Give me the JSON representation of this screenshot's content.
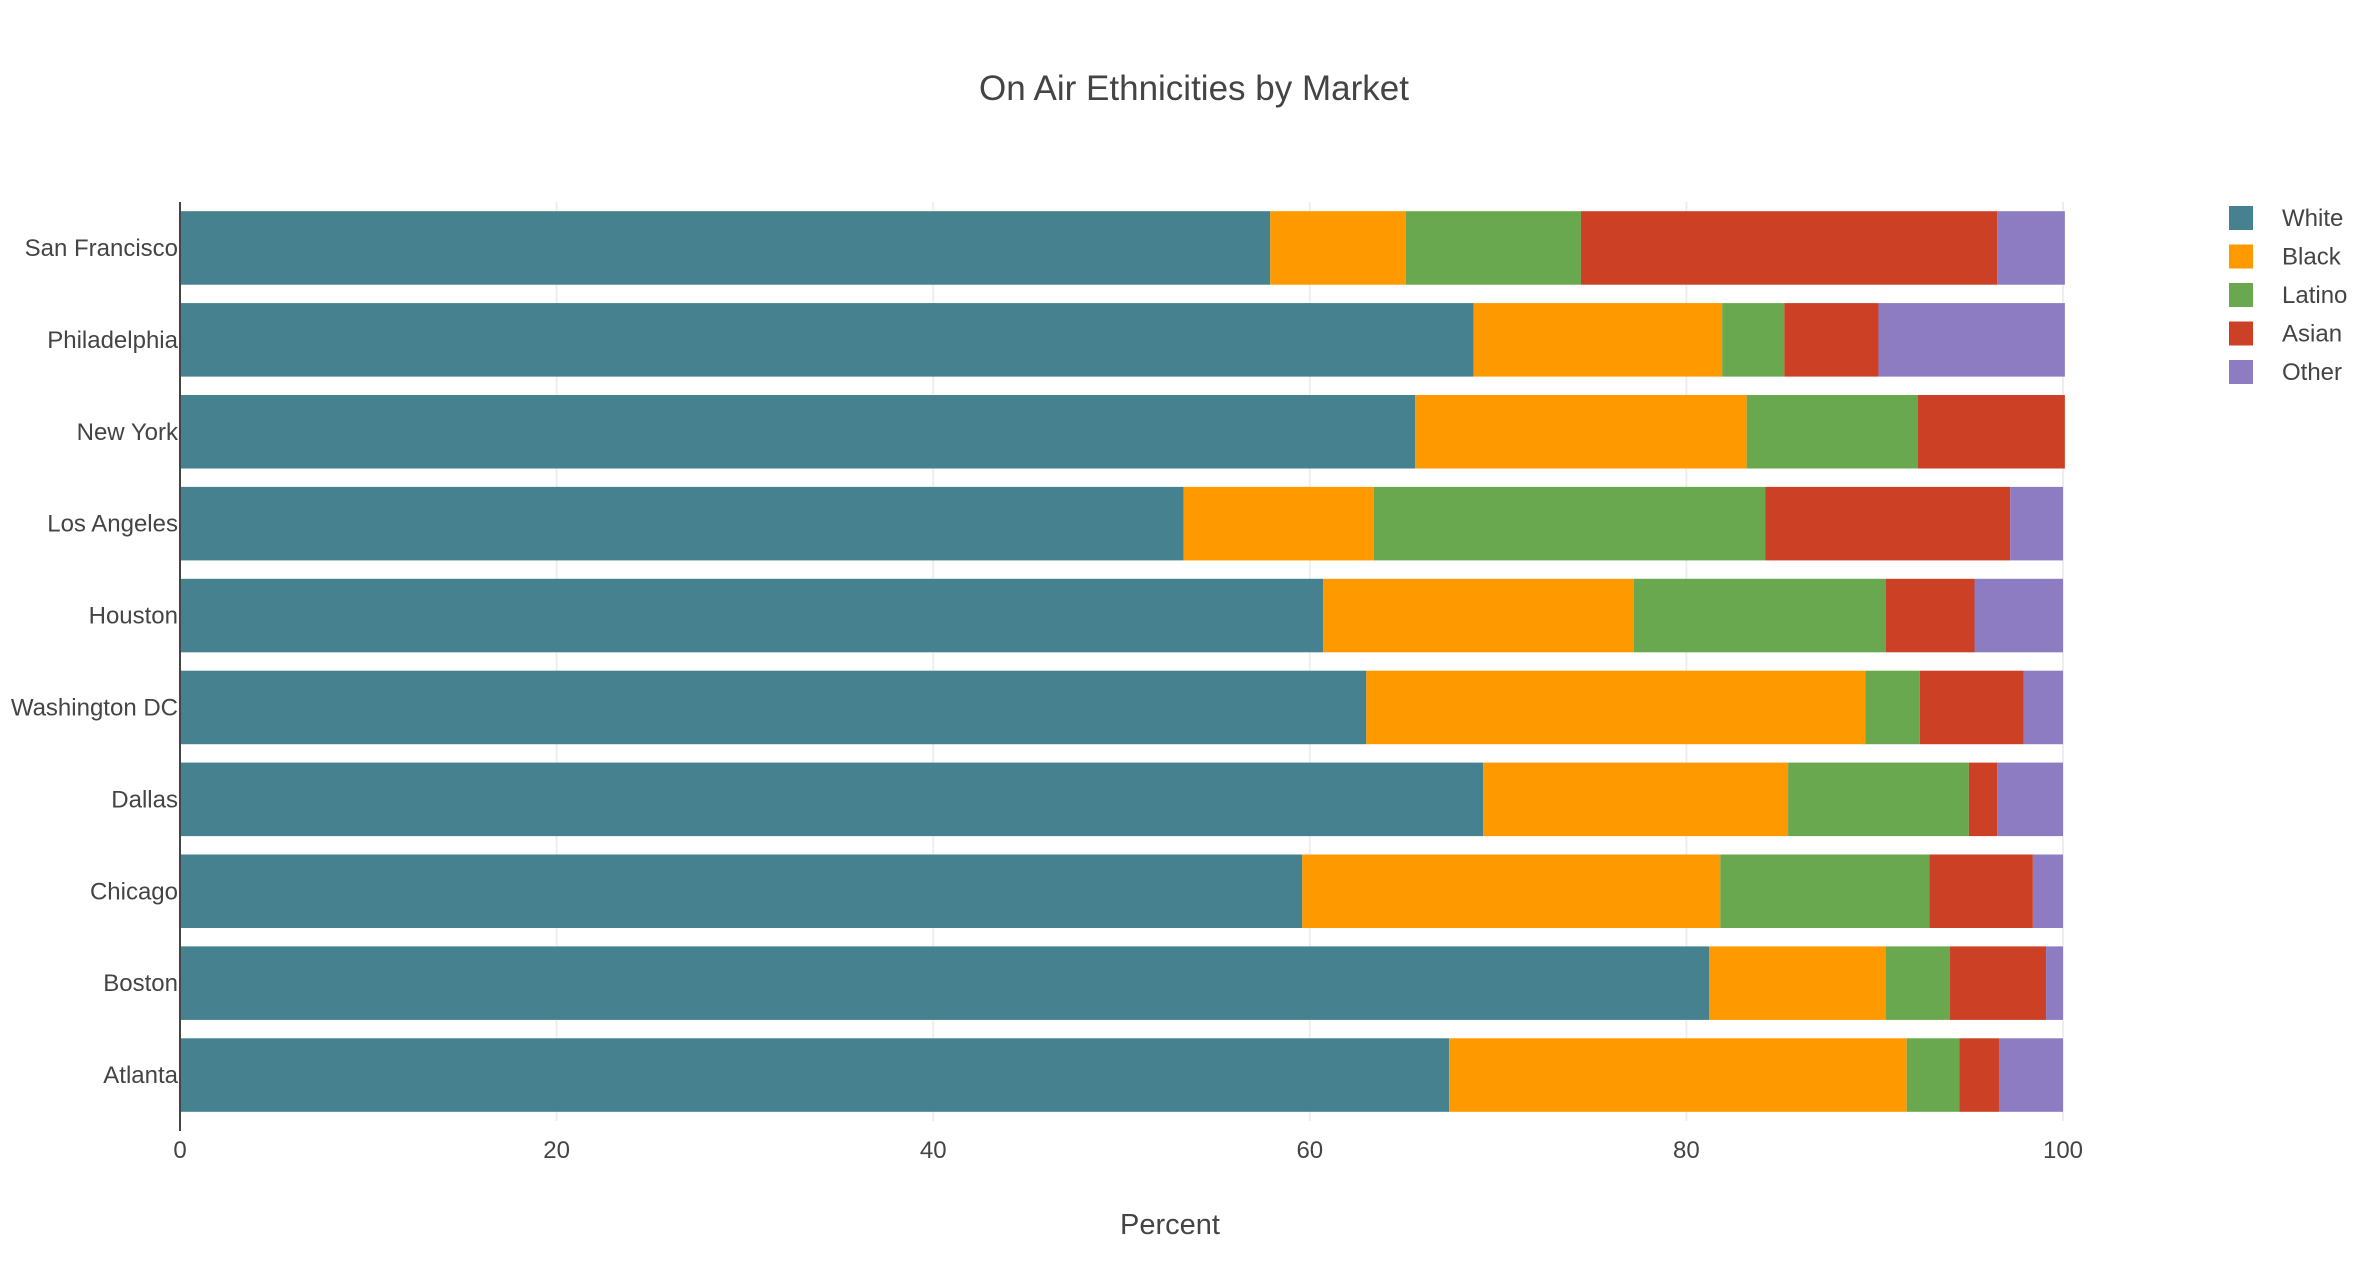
{
  "chart_data": {
    "type": "bar",
    "orientation": "horizontal",
    "barmode": "stack",
    "title": "On Air Ethnicities by Market",
    "xlabel": "Percent",
    "ylabel": "",
    "xlim": [
      0,
      100
    ],
    "x_ticks": [
      "0",
      "20",
      "40",
      "60",
      "80",
      "100"
    ],
    "grid": true,
    "legend_position": "top-right",
    "categories": [
      "Atlanta",
      "Boston",
      "Chicago",
      "Dallas",
      "Washington DC",
      "Houston",
      "Los Angeles",
      "New York",
      "Philadelphia",
      "San Francisco"
    ],
    "series": [
      {
        "name": "White",
        "color": "#45818e",
        "values": [
          67.4,
          81.2,
          59.6,
          69.2,
          63.0,
          60.7,
          53.3,
          65.6,
          68.7,
          57.9
        ]
      },
      {
        "name": "Black",
        "color": "#ff9900",
        "values": [
          24.3,
          9.4,
          22.2,
          16.2,
          26.5,
          16.5,
          10.1,
          17.6,
          13.2,
          7.2
        ]
      },
      {
        "name": "Latino",
        "color": "#6aa84f",
        "values": [
          2.8,
          3.4,
          11.1,
          9.6,
          2.9,
          13.4,
          20.8,
          9.1,
          3.3,
          9.3
        ]
      },
      {
        "name": "Asian",
        "color": "#cc4125",
        "values": [
          2.1,
          5.1,
          5.5,
          1.5,
          5.5,
          4.7,
          13.0,
          7.8,
          5.0,
          22.1
        ]
      },
      {
        "name": "Other",
        "color": "#8e7cc3",
        "values": [
          3.4,
          0.9,
          1.6,
          3.5,
          2.1,
          4.7,
          2.8,
          0.0,
          9.9,
          3.6
        ]
      }
    ]
  }
}
